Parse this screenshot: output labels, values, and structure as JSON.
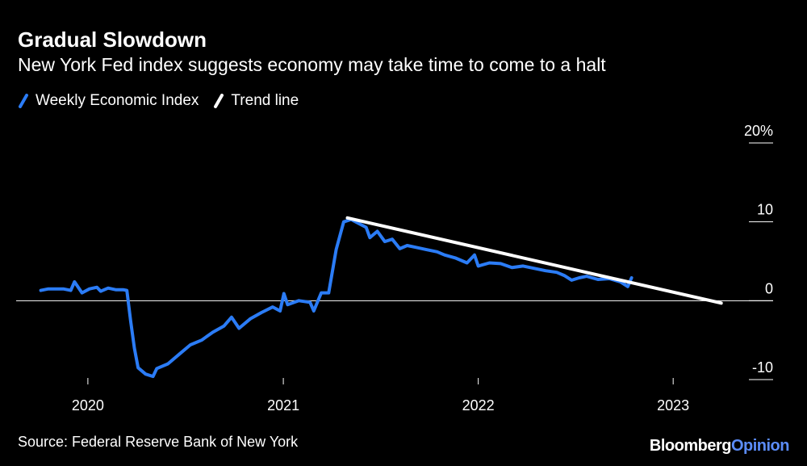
{
  "header": {
    "title": "Gradual Slowdown",
    "subtitle": "New York Fed index suggests economy may take time to come to a halt"
  },
  "legend": [
    {
      "label": "Weekly Economic Index",
      "color": "#2b7cf6"
    },
    {
      "label": "Trend line",
      "color": "#ffffff"
    }
  ],
  "footer": {
    "source": "Source: Federal Reserve Bank of New York",
    "brand_main": "Bloomberg",
    "brand_accent": "Opinion"
  },
  "chart_data": {
    "type": "line",
    "title": "Gradual Slowdown",
    "subtitle": "New York Fed index suggests economy may take time to come to a halt",
    "xlabel": "",
    "ylabel": "",
    "ylim": [
      -10,
      20
    ],
    "xlim": [
      "2019-10-01",
      "2023-04-15"
    ],
    "y_ticks": [
      {
        "value": 20,
        "label": "20%"
      },
      {
        "value": 10,
        "label": "10"
      },
      {
        "value": 0,
        "label": "0"
      },
      {
        "value": -10,
        "label": "-10"
      }
    ],
    "x_ticks": [
      {
        "date": "2020-01-01",
        "label": "2020"
      },
      {
        "date": "2021-01-01",
        "label": "2021"
      },
      {
        "date": "2022-01-01",
        "label": "2022"
      },
      {
        "date": "2023-01-01",
        "label": "2023"
      }
    ],
    "zero_line": true,
    "grid": false,
    "legend_position": "top-left",
    "series": [
      {
        "name": "Weekly Economic Index",
        "color": "#2b7cf6",
        "points": [
          [
            "2019-10-05",
            1.3
          ],
          [
            "2019-10-19",
            1.5
          ],
          [
            "2019-11-02",
            1.5
          ],
          [
            "2019-11-16",
            1.5
          ],
          [
            "2019-11-30",
            1.3
          ],
          [
            "2019-12-07",
            2.4
          ],
          [
            "2019-12-21",
            1.0
          ],
          [
            "2020-01-04",
            1.5
          ],
          [
            "2020-01-18",
            1.7
          ],
          [
            "2020-01-25",
            1.2
          ],
          [
            "2020-02-08",
            1.6
          ],
          [
            "2020-02-22",
            1.4
          ],
          [
            "2020-03-07",
            1.4
          ],
          [
            "2020-03-14",
            1.3
          ],
          [
            "2020-03-21",
            -2.5
          ],
          [
            "2020-03-28",
            -6.0
          ],
          [
            "2020-04-04",
            -8.5
          ],
          [
            "2020-04-18",
            -9.3
          ],
          [
            "2020-05-02",
            -9.6
          ],
          [
            "2020-05-09",
            -8.6
          ],
          [
            "2020-05-30",
            -8.0
          ],
          [
            "2020-06-20",
            -6.8
          ],
          [
            "2020-07-11",
            -5.6
          ],
          [
            "2020-08-01",
            -5.0
          ],
          [
            "2020-08-22",
            -4.0
          ],
          [
            "2020-09-12",
            -3.2
          ],
          [
            "2020-09-26",
            -2.1
          ],
          [
            "2020-10-10",
            -3.5
          ],
          [
            "2020-10-31",
            -2.3
          ],
          [
            "2020-11-21",
            -1.5
          ],
          [
            "2020-12-12",
            -0.8
          ],
          [
            "2020-12-26",
            -1.3
          ],
          [
            "2021-01-02",
            0.9
          ],
          [
            "2021-01-09",
            -0.5
          ],
          [
            "2021-01-30",
            0.0
          ],
          [
            "2021-02-20",
            -0.2
          ],
          [
            "2021-02-27",
            -1.3
          ],
          [
            "2021-03-13",
            1.0
          ],
          [
            "2021-03-27",
            1.0
          ],
          [
            "2021-04-10",
            6.5
          ],
          [
            "2021-04-24",
            10.0
          ],
          [
            "2021-05-08",
            10.3
          ],
          [
            "2021-05-22",
            9.8
          ],
          [
            "2021-06-05",
            9.3
          ],
          [
            "2021-06-12",
            8.0
          ],
          [
            "2021-06-26",
            8.8
          ],
          [
            "2021-07-10",
            7.5
          ],
          [
            "2021-07-24",
            7.8
          ],
          [
            "2021-08-07",
            6.6
          ],
          [
            "2021-08-21",
            7.0
          ],
          [
            "2021-09-04",
            6.8
          ],
          [
            "2021-09-25",
            6.5
          ],
          [
            "2021-10-16",
            6.2
          ],
          [
            "2021-10-30",
            5.8
          ],
          [
            "2021-11-20",
            5.4
          ],
          [
            "2021-12-11",
            4.8
          ],
          [
            "2021-12-25",
            5.8
          ],
          [
            "2022-01-01",
            4.4
          ],
          [
            "2022-01-22",
            4.8
          ],
          [
            "2022-02-12",
            4.7
          ],
          [
            "2022-03-05",
            4.2
          ],
          [
            "2022-03-26",
            4.4
          ],
          [
            "2022-04-16",
            4.1
          ],
          [
            "2022-05-07",
            3.8
          ],
          [
            "2022-05-28",
            3.6
          ],
          [
            "2022-06-11",
            3.2
          ],
          [
            "2022-06-25",
            2.6
          ],
          [
            "2022-07-09",
            2.9
          ],
          [
            "2022-07-23",
            3.1
          ],
          [
            "2022-08-13",
            2.7
          ],
          [
            "2022-09-03",
            2.8
          ],
          [
            "2022-09-24",
            2.4
          ],
          [
            "2022-10-08",
            1.8
          ],
          [
            "2022-10-15",
            2.9
          ]
        ]
      },
      {
        "name": "Trend line",
        "color": "#ffffff",
        "points": [
          [
            "2021-05-01",
            10.5
          ],
          [
            "2023-04-01",
            -0.3
          ]
        ]
      }
    ]
  }
}
